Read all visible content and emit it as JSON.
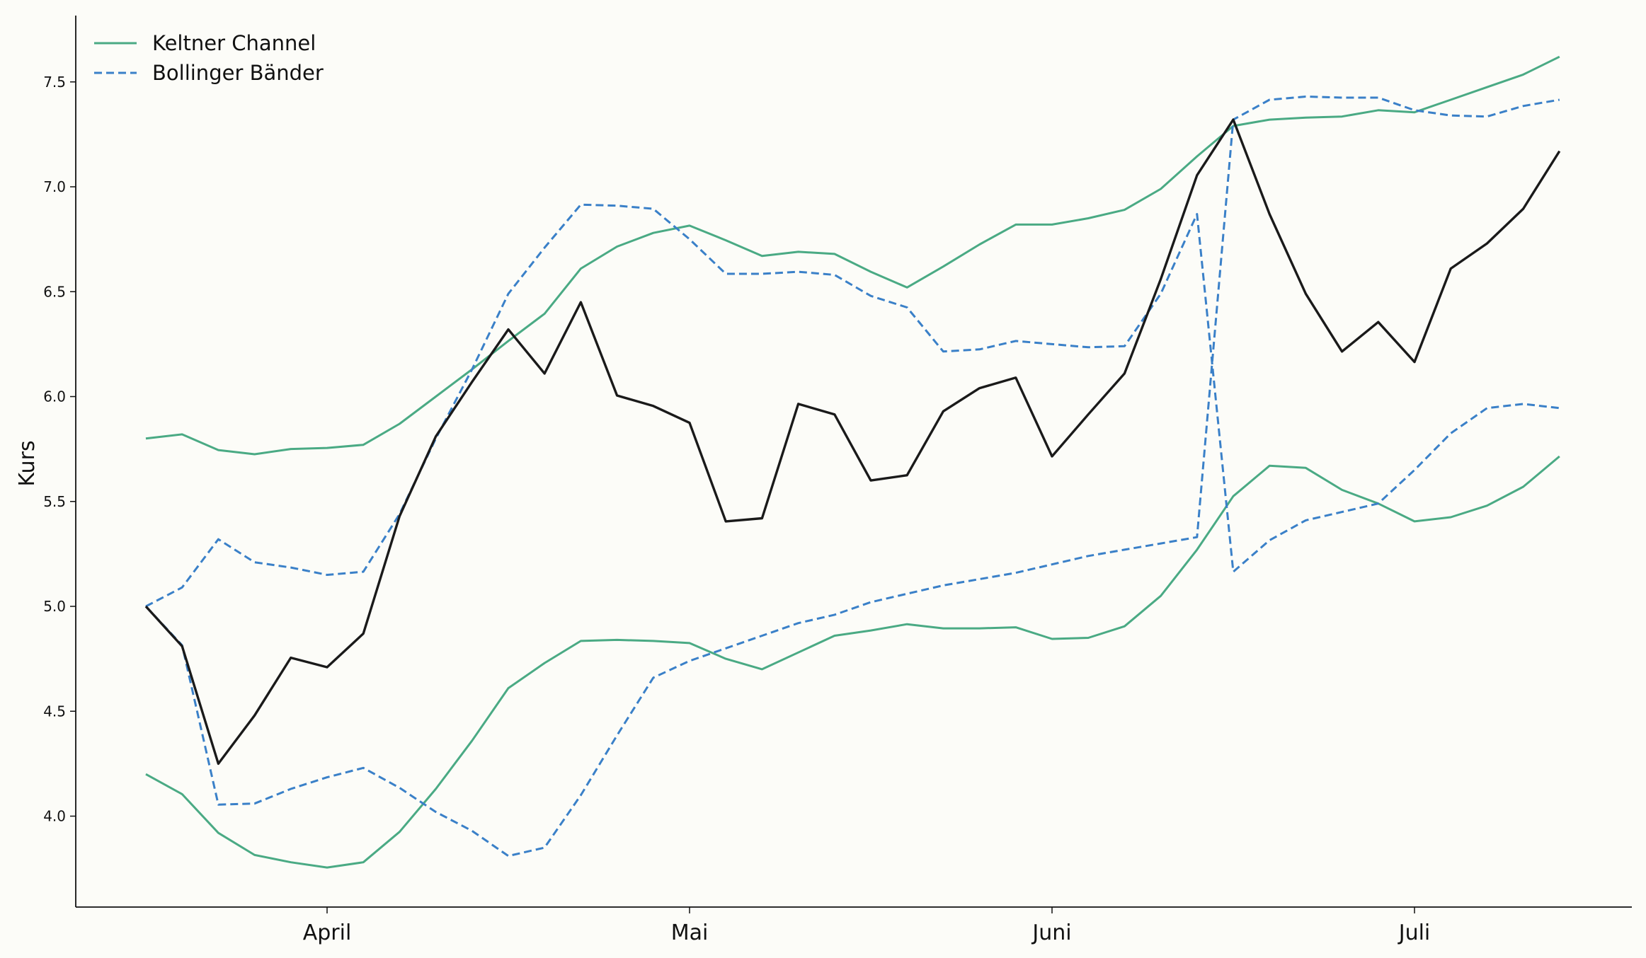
{
  "chart_data": {
    "type": "line",
    "title": "",
    "xlabel": "",
    "ylabel": "Kurs",
    "ylim": [
      3.57,
      7.82
    ],
    "x_tick_labels": [
      "April",
      "Mai",
      "Juni",
      "Juli"
    ],
    "y_ticks": [
      4.0,
      4.5,
      5.0,
      5.5,
      6.0,
      6.5,
      7.0,
      7.5
    ],
    "grid": false,
    "legend_position": "top-left",
    "colors": {
      "price": "#1a1a1a",
      "keltner": "#4aaa84",
      "bollinger": "#3a80c8",
      "background": "#fcfcf8",
      "axis": "#111111"
    },
    "legend": [
      {
        "label": "Keltner Channel",
        "style": "solid",
        "color": "#4aaa84"
      },
      {
        "label": "Bollinger Bänder",
        "style": "dashed",
        "color": "#3a80c8"
      }
    ],
    "x": [
      0,
      1,
      2,
      3,
      4,
      5,
      6,
      7,
      8,
      9,
      10,
      11,
      12,
      13,
      14,
      15,
      16,
      17,
      18,
      19,
      20,
      21,
      22,
      23,
      24,
      25,
      26,
      27,
      28,
      29,
      30,
      31,
      32,
      33,
      34,
      35,
      36,
      37,
      38,
      39
    ],
    "x_ticks_at": [
      5,
      15,
      25,
      35
    ],
    "series": [
      {
        "role": "price",
        "style": "solid",
        "values": [
          5.0,
          4.81,
          4.25,
          4.48,
          4.755,
          4.71,
          4.87,
          5.43,
          5.81,
          6.07,
          6.32,
          6.11,
          6.45,
          6.005,
          5.955,
          5.875,
          5.405,
          5.42,
          5.965,
          5.915,
          5.6,
          5.625,
          5.93,
          6.04,
          6.09,
          5.715,
          5.915,
          6.11,
          6.56,
          7.055,
          7.32,
          6.87,
          6.49,
          6.215,
          6.355,
          6.165,
          6.61,
          6.73,
          6.895,
          7.17
        ]
      },
      {
        "role": "keltner_upper",
        "style": "solid",
        "values": [
          5.8,
          5.82,
          5.745,
          5.725,
          5.75,
          5.755,
          5.77,
          5.87,
          6.0,
          6.13,
          6.265,
          6.395,
          6.61,
          6.715,
          6.78,
          6.815,
          6.745,
          6.67,
          6.69,
          6.68,
          6.595,
          6.52,
          6.62,
          6.725,
          6.82,
          6.82,
          6.85,
          6.89,
          6.99,
          7.145,
          7.29,
          7.32,
          7.33,
          7.335,
          7.365,
          7.355,
          7.415,
          7.475,
          7.535,
          7.62
        ]
      },
      {
        "role": "keltner_lower",
        "style": "solid",
        "values": [
          4.2,
          4.105,
          3.92,
          3.815,
          3.78,
          3.755,
          3.78,
          3.925,
          4.13,
          4.36,
          4.61,
          4.73,
          4.835,
          4.84,
          4.835,
          4.825,
          4.75,
          4.7,
          4.78,
          4.86,
          4.885,
          4.915,
          4.895,
          4.895,
          4.9,
          4.845,
          4.85,
          4.905,
          5.05,
          5.27,
          5.525,
          5.67,
          5.66,
          5.555,
          5.49,
          5.405,
          5.425,
          5.48,
          5.57,
          5.715
        ]
      },
      {
        "role": "bollinger_upper",
        "style": "dashed",
        "values": [
          5.0,
          4.815,
          4.055,
          4.06,
          4.13,
          4.185,
          4.23,
          4.135,
          4.02,
          3.93,
          3.81,
          3.85,
          4.1,
          4.385,
          4.66,
          4.74,
          4.8,
          4.86,
          4.92,
          4.96,
          5.02,
          5.06,
          5.1,
          5.13,
          5.16,
          5.2,
          5.24,
          5.27,
          5.3,
          5.33,
          7.32,
          7.415,
          7.43,
          7.425,
          7.425,
          7.365,
          7.34,
          7.335,
          7.385,
          7.415
        ]
      },
      {
        "role": "bollinger_lower",
        "style": "dashed",
        "values": [
          5.0,
          5.09,
          5.32,
          5.21,
          5.185,
          5.15,
          5.165,
          5.44,
          5.8,
          6.13,
          6.49,
          6.71,
          6.915,
          6.91,
          6.895,
          6.75,
          6.585,
          6.585,
          6.595,
          6.58,
          6.48,
          6.425,
          6.215,
          6.225,
          6.265,
          6.25,
          6.235,
          6.24,
          6.49,
          6.87,
          5.165,
          5.315,
          5.41,
          5.45,
          5.49,
          5.65,
          5.825,
          5.945,
          5.965,
          5.945
        ]
      }
    ]
  }
}
